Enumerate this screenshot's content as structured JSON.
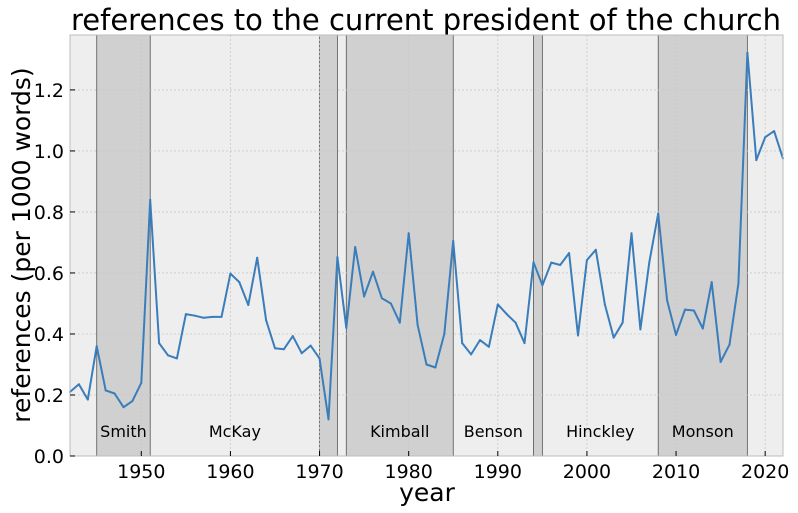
{
  "chart_data": {
    "type": "line",
    "title": "references to the current president of the church",
    "xlabel": "year",
    "ylabel": "references (per 1000 words)",
    "xlim": [
      1942,
      2022
    ],
    "ylim": [
      0.0,
      1.38
    ],
    "x_ticks": [
      1950,
      1960,
      1970,
      1980,
      1990,
      2000,
      2010,
      2020
    ],
    "x_tick_labels": [
      "1950",
      "1960",
      "1970",
      "1980",
      "1990",
      "2000",
      "2010",
      "2020"
    ],
    "y_ticks": [
      0.0,
      0.2,
      0.4,
      0.6,
      0.8,
      1.0,
      1.2
    ],
    "y_tick_labels": [
      "0.0",
      "0.2",
      "0.4",
      "0.6",
      "0.8",
      "1.0",
      "1.2"
    ],
    "grid": true,
    "colors": {
      "line": "#3a7dbb",
      "plot_background": "#eeeeee",
      "shaded_era": "#d0d0d0",
      "grid": "#c8c8c8"
    },
    "series": [
      {
        "x": [
          1942,
          1943,
          1944,
          1945,
          1946,
          1947,
          1948,
          1949,
          1950,
          1951,
          1952,
          1953,
          1954,
          1955,
          1956,
          1957,
          1958,
          1959,
          1960,
          1961,
          1962,
          1963,
          1964,
          1965,
          1966,
          1967,
          1968,
          1969,
          1970,
          1971,
          1972,
          1973,
          1974,
          1975,
          1976,
          1977,
          1978,
          1979,
          1980,
          1981,
          1982,
          1983,
          1984,
          1985,
          1986,
          1987,
          1988,
          1989,
          1990,
          1991,
          1992,
          1993,
          1994,
          1995,
          1996,
          1997,
          1998,
          1999,
          2000,
          2001,
          2002,
          2003,
          2004,
          2005,
          2006,
          2007,
          2008,
          2009,
          2010,
          2011,
          2012,
          2013,
          2014,
          2015,
          2016,
          2017,
          2018,
          2019,
          2020,
          2021,
          2022
        ],
        "values": [
          0.21,
          0.235,
          0.185,
          0.36,
          0.215,
          0.205,
          0.16,
          0.18,
          0.24,
          0.84,
          0.37,
          0.33,
          0.32,
          0.465,
          0.46,
          0.453,
          0.456,
          0.456,
          0.598,
          0.57,
          0.495,
          0.65,
          0.445,
          0.353,
          0.35,
          0.393,
          0.337,
          0.362,
          0.32,
          0.12,
          0.652,
          0.42,
          0.685,
          0.523,
          0.604,
          0.517,
          0.5,
          0.437,
          0.73,
          0.43,
          0.3,
          0.29,
          0.4,
          0.705,
          0.37,
          0.333,
          0.38,
          0.358,
          0.497,
          0.465,
          0.437,
          0.37,
          0.635,
          0.56,
          0.634,
          0.626,
          0.665,
          0.395,
          0.642,
          0.676,
          0.498,
          0.388,
          0.437,
          0.73,
          0.415,
          0.635,
          0.795,
          0.51,
          0.397,
          0.48,
          0.477,
          0.418,
          0.57,
          0.308,
          0.365,
          0.565,
          1.322,
          0.97,
          1.045,
          1.065,
          0.975
        ]
      }
    ],
    "eras": [
      {
        "label": "",
        "start": 1942,
        "end": 1945,
        "shaded": false
      },
      {
        "label": "Smith",
        "start": 1945,
        "end": 1951,
        "shaded": true
      },
      {
        "label": "McKay",
        "start": 1951,
        "end": 1970,
        "shaded": false
      },
      {
        "label": "",
        "start": 1970,
        "end": 1972,
        "shaded": true
      },
      {
        "label": "",
        "start": 1972,
        "end": 1973,
        "shaded": false
      },
      {
        "label": "Kimball",
        "start": 1973,
        "end": 1985,
        "shaded": true
      },
      {
        "label": "Benson",
        "start": 1985,
        "end": 1994,
        "shaded": false
      },
      {
        "label": "",
        "start": 1994,
        "end": 1995,
        "shaded": true
      },
      {
        "label": "Hinckley",
        "start": 1995,
        "end": 2008,
        "shaded": false
      },
      {
        "label": "Monson",
        "start": 2008,
        "end": 2018,
        "shaded": true
      },
      {
        "label": "",
        "start": 2018,
        "end": 2022,
        "shaded": false
      }
    ]
  }
}
